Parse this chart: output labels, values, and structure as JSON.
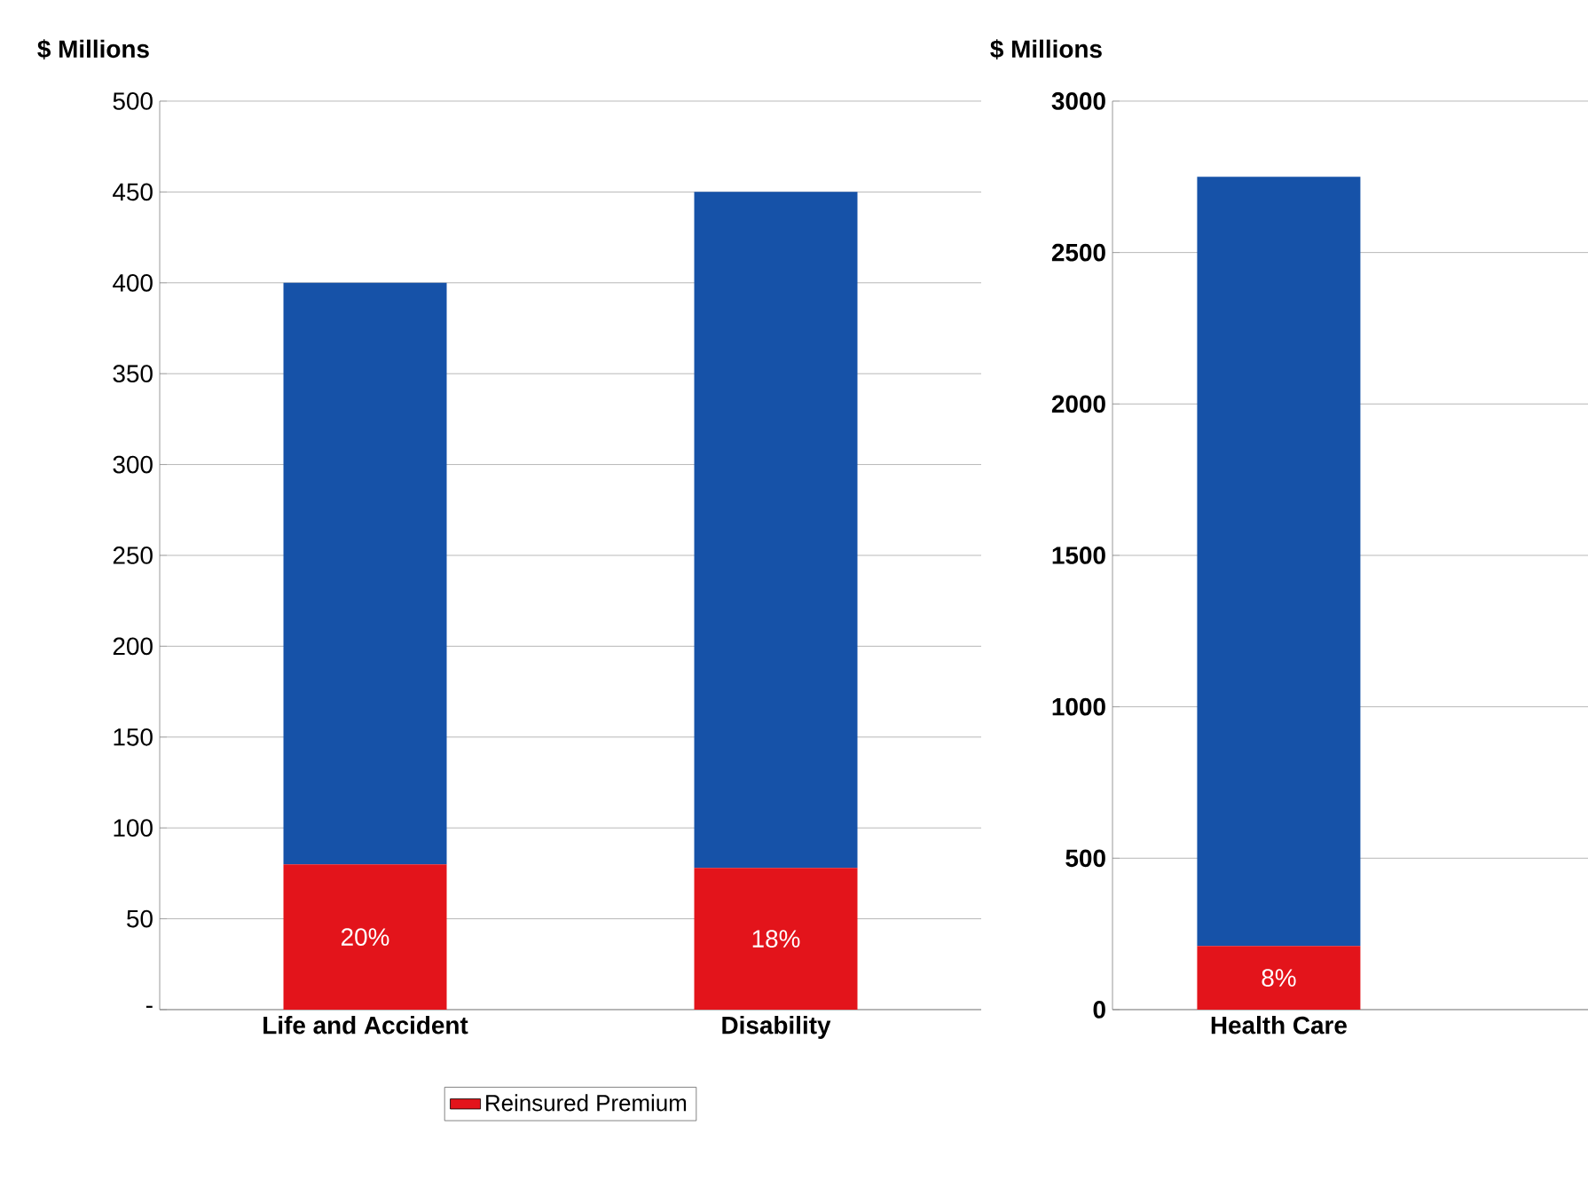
{
  "chart_data": [
    {
      "type": "bar",
      "stacked": true,
      "ylabel": "$ Millions",
      "categories": [
        "Life and Accident",
        "Disability"
      ],
      "series": [
        {
          "name": "Reinsured Premium",
          "color": "#e3141b",
          "values": [
            80,
            78
          ]
        },
        {
          "color": "#1652a8",
          "values": [
            320,
            372
          ]
        }
      ],
      "annotations": [
        "20%",
        "18%"
      ],
      "ylim": [
        0,
        500
      ],
      "yticks": [
        {
          "value": 0,
          "label": "-"
        },
        50,
        100,
        150,
        200,
        250,
        300,
        350,
        400,
        450,
        500
      ],
      "grid": "y",
      "legend": "bottom"
    },
    {
      "type": "bar",
      "stacked": true,
      "ylabel": "$ Millions",
      "categories": [
        "Health Care"
      ],
      "series": [
        {
          "color": "#e3141b",
          "values": [
            210
          ]
        },
        {
          "color": "#1652a8",
          "values": [
            2540
          ]
        }
      ],
      "annotations": [
        "8%"
      ],
      "ylim": [
        0,
        3000
      ],
      "yticks": [
        0,
        500,
        1000,
        1500,
        2000,
        2500,
        3000
      ],
      "grid": "y"
    }
  ]
}
